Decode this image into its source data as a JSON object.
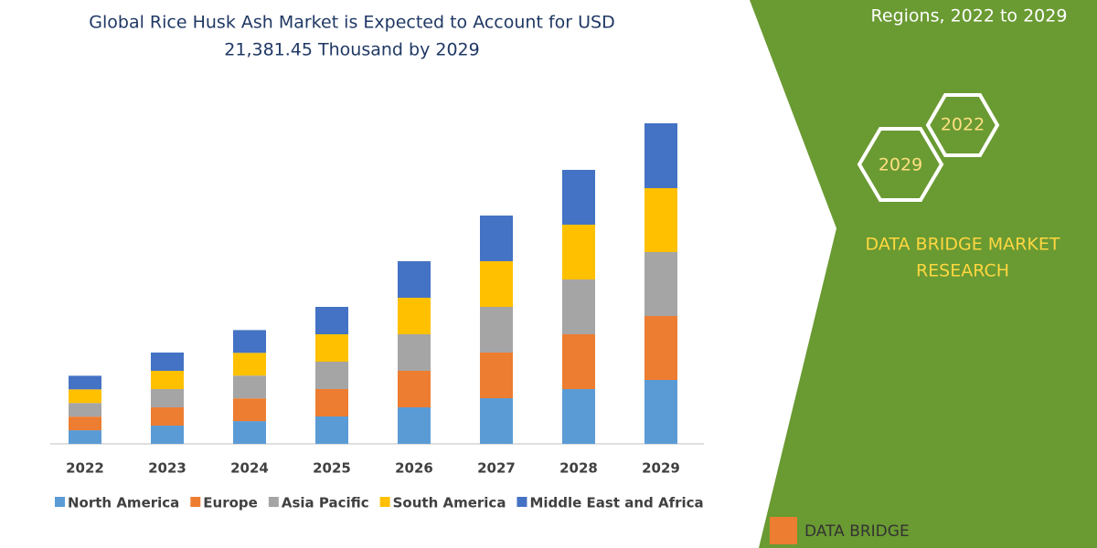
{
  "chart_data": {
    "type": "stacked_bar",
    "title": "Global Rice Husk Ash Market is Expected to Account for USD",
    "subtitle": "21,381.45 Thousand by 2029",
    "categories": [
      "2022",
      "2023",
      "2024",
      "2025",
      "2026",
      "2027",
      "2028",
      "2029"
    ],
    "series": [
      {
        "name": "North America",
        "color": "#5b9bd5",
        "values": [
          910,
          1220,
          1520,
          1830,
          2440,
          3050,
          3660,
          4270
        ]
      },
      {
        "name": "Europe",
        "color": "#ed7d31",
        "values": [
          910,
          1220,
          1520,
          1830,
          2440,
          3050,
          3660,
          4270
        ]
      },
      {
        "name": "Asia Pacific",
        "color": "#a5a5a5",
        "values": [
          910,
          1220,
          1520,
          1830,
          2440,
          3050,
          3660,
          4270
        ]
      },
      {
        "name": "South America",
        "color": "#ffc000",
        "values": [
          910,
          1220,
          1520,
          1830,
          2440,
          3050,
          3660,
          4270
        ]
      },
      {
        "name": "Middle East and Africa",
        "color": "#4472c4",
        "values": [
          910,
          1220,
          1520,
          1830,
          2440,
          3050,
          3660,
          4330
        ]
      }
    ]
  },
  "side_panel": {
    "caption": "Regions, 2022 to 2029",
    "hex_labels": [
      "2022",
      "2029"
    ],
    "brand_lines": [
      "DATA BRIDGE MARKET",
      "RESEARCH"
    ],
    "logo": "DATA BRIDGE"
  }
}
